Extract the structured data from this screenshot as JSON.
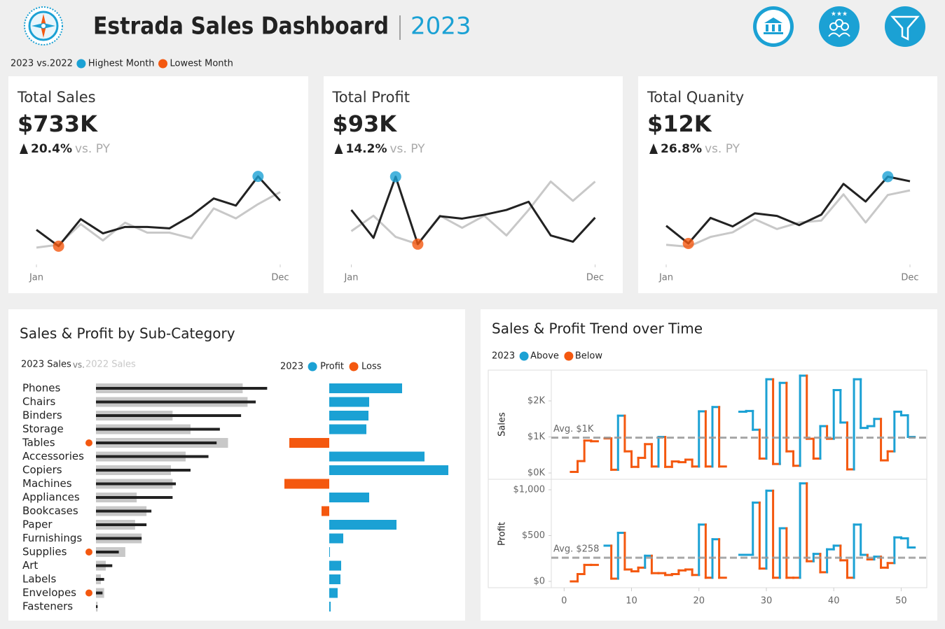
{
  "header": {
    "title": "Estrada Sales Dashboard",
    "year": "2023"
  },
  "legend": {
    "label": "2023 vs.2022",
    "highest": "Highest Month",
    "lowest": "Lowest Month",
    "highest_color": "#1ba1d4",
    "lowest_color": "#f4580f"
  },
  "chart_data": [
    {
      "type": "line",
      "title": "Total Sales",
      "value": "$733K",
      "change": "20.4%",
      "comparison": "vs. PY",
      "categories": [
        "Jan",
        null,
        null,
        null,
        null,
        null,
        null,
        null,
        null,
        null,
        null,
        "Dec"
      ],
      "series": [
        {
          "color": "#222222",
          "values": [
            43,
            20,
            58,
            38,
            47,
            47,
            45,
            63,
            87,
            77,
            118,
            84
          ]
        },
        {
          "color": "#c8c8c8",
          "values": [
            18,
            22,
            51,
            28,
            53,
            39,
            39,
            31,
            73,
            59,
            79,
            96
          ]
        }
      ],
      "ylim": [
        10,
        125
      ]
    },
    {
      "type": "line",
      "title": "Total Profit",
      "value": "$93K",
      "change": "14.2%",
      "comparison": "vs. PY",
      "categories": [
        "Jan",
        null,
        null,
        null,
        null,
        null,
        null,
        null,
        null,
        null,
        null,
        "Dec"
      ],
      "series": [
        {
          "color": "#222222",
          "values": [
            8.0,
            2.2,
            14.9,
            0.9,
            6.7,
            6.2,
            7.0,
            8.0,
            9.7,
            2.7,
            1.4,
            6.4
          ]
        },
        {
          "color": "#c8c8c8",
          "values": [
            3.6,
            6.8,
            2.4,
            0.9,
            6.8,
            4.3,
            6.8,
            2.7,
            8.0,
            13.9,
            9.9,
            13.9
          ]
        }
      ],
      "ylim": [
        -1,
        16
      ]
    },
    {
      "type": "line",
      "title": "Total Quanity",
      "value": "$12K",
      "change": "26.8%",
      "comparison": "vs. PY",
      "categories": [
        "Jan",
        null,
        null,
        null,
        null,
        null,
        null,
        null,
        null,
        null,
        null,
        "Dec"
      ],
      "series": [
        {
          "color": "#222222",
          "values": [
            0.82,
            0.55,
            0.94,
            0.81,
            1.01,
            0.97,
            0.83,
            0.99,
            1.46,
            1.19,
            1.57,
            1.5
          ]
        },
        {
          "color": "#c8c8c8",
          "values": [
            0.53,
            0.5,
            0.65,
            0.72,
            0.92,
            0.77,
            0.87,
            0.9,
            1.3,
            0.87,
            1.29,
            1.36
          ]
        }
      ],
      "ylim": [
        0.4,
        1.65
      ]
    },
    {
      "type": "bar",
      "orientation": "horizontal",
      "title": "Sales & Profit by Sub-Category",
      "categories": [
        "Phones",
        "Chairs",
        "Binders",
        "Storage",
        "Tables",
        "Accessories",
        "Copiers",
        "Machines",
        "Appliances",
        "Bookcases",
        "Paper",
        "Furnishings",
        "Supplies",
        "Art",
        "Labels",
        "Envelopes",
        "Fasteners"
      ],
      "legend_separator": "vs.",
      "series": [
        {
          "name": "2023 Sales",
          "color": "#222222",
          "values": [
            105,
            98,
            89,
            76,
            74,
            69,
            58,
            49,
            47,
            34,
            31,
            28,
            14,
            10,
            5,
            4,
            1
          ]
        },
        {
          "name": "2022 Sales",
          "color": "#c8c8c8",
          "values": [
            90,
            93,
            47,
            58,
            81,
            55,
            46,
            47,
            25,
            31,
            24,
            28,
            18,
            6,
            3,
            5,
            1
          ]
        }
      ],
      "xlim": [
        0,
        110
      ],
      "flag_color": "#f4580f",
      "profit": {
        "legend_title": "2023",
        "legend": [
          {
            "name": "Profit",
            "color": "#1ba1d4"
          },
          {
            "name": "Loss",
            "color": "#f4580f"
          }
        ],
        "values": [
          10.4,
          5.7,
          5.6,
          5.3,
          -5.7,
          13.6,
          17.0,
          -6.4,
          5.7,
          -1.1,
          9.6,
          2.0,
          0.1,
          1.7,
          1.6,
          1.2,
          0.2
        ],
        "xlim": [
          -7,
          17.5
        ]
      }
    },
    {
      "type": "step",
      "title": "Sales & Profit Trend over Time",
      "legend_title": "2023",
      "legend": [
        {
          "name": "Above",
          "color": "#1ba1d4"
        },
        {
          "name": "Below",
          "color": "#f4580f"
        }
      ],
      "x": [
        0,
        1,
        2,
        3,
        4,
        5,
        6,
        7,
        8,
        9,
        10,
        11,
        12,
        13,
        14,
        15,
        16,
        17,
        18,
        19,
        20,
        21,
        22,
        23,
        24,
        25,
        26,
        27,
        28,
        29,
        30,
        31,
        32,
        33,
        34,
        35,
        36,
        37,
        38,
        39,
        40,
        41,
        42,
        43,
        44,
        45,
        46,
        47,
        48,
        49,
        50,
        51
      ],
      "xlim": [
        -1.9,
        53.8
      ],
      "xticks": [
        0,
        10,
        20,
        30,
        40,
        50
      ],
      "panels": [
        {
          "ylabel": "Sales",
          "ylim": [
            -155,
            2854
          ],
          "yticks": [
            {
              "value": 0,
              "label": "$0K"
            },
            {
              "value": 1000,
              "label": "$1K"
            },
            {
              "value": 2000,
              "label": "$2K"
            }
          ],
          "average": {
            "value": 980,
            "label": "Avg. $1K"
          },
          "values": [
            null,
            30,
            330,
            900,
            880,
            null,
            960,
            90,
            1590,
            600,
            170,
            420,
            800,
            180,
            1000,
            170,
            320,
            300,
            370,
            180,
            1710,
            180,
            1830,
            180,
            null,
            null,
            1700,
            1720,
            1200,
            400,
            2600,
            250,
            2500,
            600,
            200,
            2700,
            950,
            400,
            1300,
            950,
            2300,
            1400,
            100,
            2600,
            1250,
            1300,
            1500,
            350,
            600,
            1700,
            1600,
            1000
          ]
        },
        {
          "ylabel": "Profit",
          "ylim": [
            -69,
            1107
          ],
          "yticks": [
            {
              "value": 0,
              "label": "$0"
            },
            {
              "value": 500,
              "label": "$500"
            },
            {
              "value": 1000,
              "label": "$1,000"
            }
          ],
          "average": {
            "value": 258,
            "label": "Avg. $258"
          },
          "values": [
            null,
            0,
            80,
            180,
            180,
            null,
            390,
            30,
            530,
            130,
            110,
            150,
            280,
            90,
            90,
            70,
            80,
            120,
            130,
            70,
            620,
            40,
            460,
            40,
            null,
            null,
            290,
            290,
            860,
            140,
            990,
            40,
            580,
            40,
            40,
            1070,
            220,
            300,
            100,
            350,
            390,
            230,
            40,
            620,
            290,
            240,
            270,
            150,
            200,
            480,
            470,
            370
          ]
        }
      ]
    }
  ]
}
